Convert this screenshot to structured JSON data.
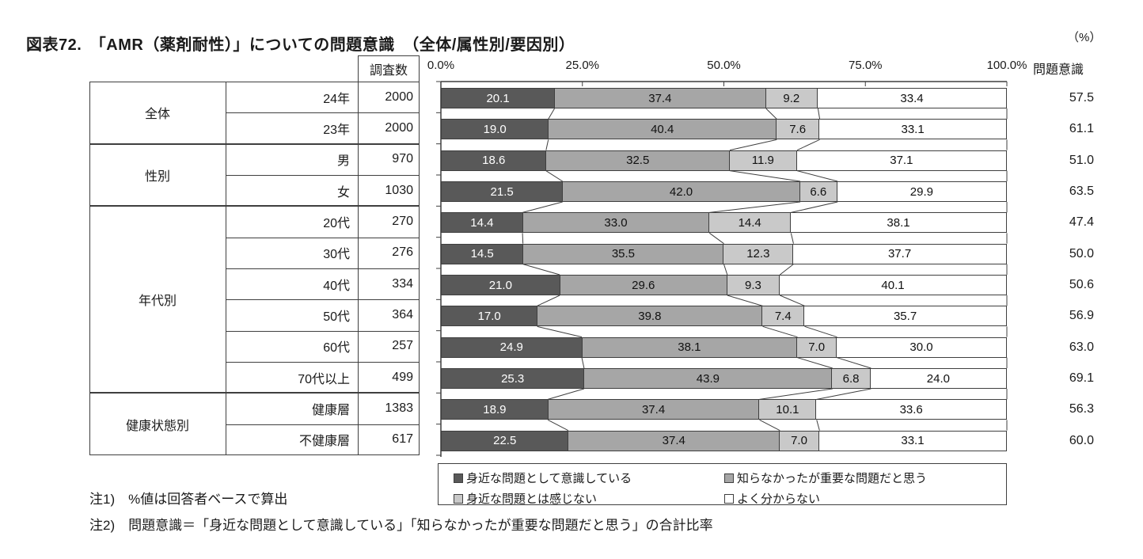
{
  "title": "図表72.　「AMR（薬剤耐性）」についての問題意識　（全体/属性別/要因別）",
  "unit_label": "（%）",
  "awareness_header": "問題意識",
  "survey_count_header": "調査数",
  "colors": {
    "seg1": "#595959",
    "seg2": "#a6a6a6",
    "seg3": "#c9c9c9",
    "seg4": "#ffffff",
    "line": "#3f3f3f"
  },
  "table": {
    "groups": [
      {
        "label": "全体",
        "start": 0,
        "end": 2
      },
      {
        "label": "性別",
        "start": 2,
        "end": 4
      },
      {
        "label": "年代別",
        "start": 4,
        "end": 10
      },
      {
        "label": "健康状態別",
        "start": 10,
        "end": 12
      }
    ],
    "rows": [
      {
        "label": "24年",
        "n": "2000"
      },
      {
        "label": "23年",
        "n": "2000"
      },
      {
        "label": "男",
        "n": "970"
      },
      {
        "label": "女",
        "n": "1030"
      },
      {
        "label": "20代",
        "n": "270"
      },
      {
        "label": "30代",
        "n": "276"
      },
      {
        "label": "40代",
        "n": "334"
      },
      {
        "label": "50代",
        "n": "364"
      },
      {
        "label": "60代",
        "n": "257"
      },
      {
        "label": "70代以上",
        "n": "499"
      },
      {
        "label": "健康層",
        "n": "1383"
      },
      {
        "label": "不健康層",
        "n": "617"
      }
    ]
  },
  "chart_data": {
    "type": "bar",
    "stacked": true,
    "orientation": "horizontal",
    "title": "「AMR（薬剤耐性）」についての問題意識",
    "xlim": [
      0,
      100
    ],
    "x_ticks": [
      "0.0%",
      "25.0%",
      "50.0%",
      "75.0%",
      "100.0%"
    ],
    "grid": false,
    "legend_position": "bottom",
    "categories": [
      "24年",
      "23年",
      "男",
      "女",
      "20代",
      "30代",
      "40代",
      "50代",
      "60代",
      "70代以上",
      "健康層",
      "不健康層"
    ],
    "series": [
      {
        "name": "身近な問題として意識している",
        "values": [
          20.1,
          19.0,
          18.6,
          21.5,
          14.4,
          14.5,
          21.0,
          17.0,
          24.9,
          25.3,
          18.9,
          22.5
        ]
      },
      {
        "name": "知らなかったが重要な問題だと思う",
        "values": [
          37.4,
          40.4,
          32.5,
          42.0,
          33.0,
          35.5,
          29.6,
          39.8,
          38.1,
          43.9,
          37.4,
          37.4
        ]
      },
      {
        "name": "身近な問題とは感じない",
        "values": [
          9.2,
          7.6,
          11.9,
          6.6,
          14.4,
          12.3,
          9.3,
          7.4,
          7.0,
          6.8,
          10.1,
          7.0
        ]
      },
      {
        "name": "よく分からない",
        "values": [
          33.4,
          33.1,
          37.1,
          29.9,
          38.1,
          37.7,
          40.1,
          35.7,
          30.0,
          24.0,
          33.6,
          33.1
        ]
      }
    ],
    "awareness_totals": [
      57.5,
      61.1,
      51.0,
      63.5,
      47.4,
      50.0,
      50.6,
      56.9,
      63.0,
      69.1,
      56.3,
      60.0
    ]
  },
  "legend": [
    {
      "label": "身近な問題として意識している"
    },
    {
      "label": "知らなかったが重要な問題だと思う"
    },
    {
      "label": "身近な問題とは感じない"
    },
    {
      "label": "よく分からない"
    }
  ],
  "notes": [
    "注1)　%値は回答者ベースで算出",
    "注2)　問題意識＝「身近な問題として意識している」「知らなかったが重要な問題だと思う」の合計比率"
  ]
}
